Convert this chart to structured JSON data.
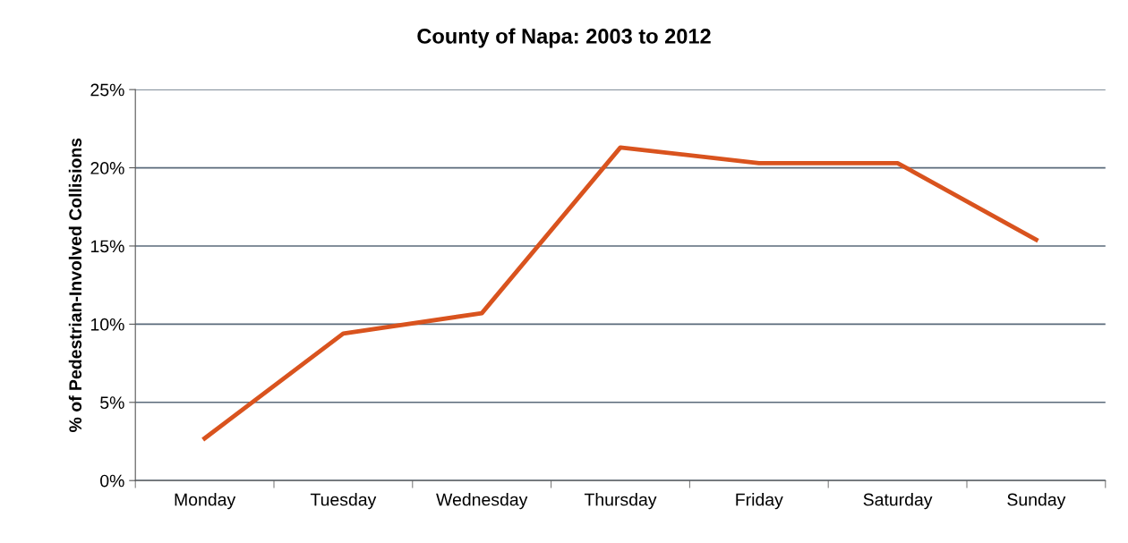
{
  "chart_data": {
    "type": "line",
    "title": "County of Napa: 2003 to 2012",
    "ylabel": "% of Pedestrian-Involved Collisions",
    "categories": [
      "Monday",
      "Tuesday",
      "Wednesday",
      "Thursday",
      "Friday",
      "Saturday",
      "Sunday"
    ],
    "series": [
      {
        "color": "#d9531e",
        "values": [
          2.7,
          9.4,
          10.7,
          21.3,
          20.3,
          20.3,
          15.4
        ]
      }
    ],
    "ylim": [
      0,
      25
    ],
    "yticks": [
      {
        "value": 0,
        "label": "0%"
      },
      {
        "value": 5,
        "label": "5%"
      },
      {
        "value": 10,
        "label": "10%"
      },
      {
        "value": 15,
        "label": "15%"
      },
      {
        "value": 20,
        "label": "20%"
      },
      {
        "value": 25,
        "label": "25%"
      }
    ],
    "grid": "y",
    "legend": false,
    "marker": "none",
    "line_style": "solid"
  }
}
